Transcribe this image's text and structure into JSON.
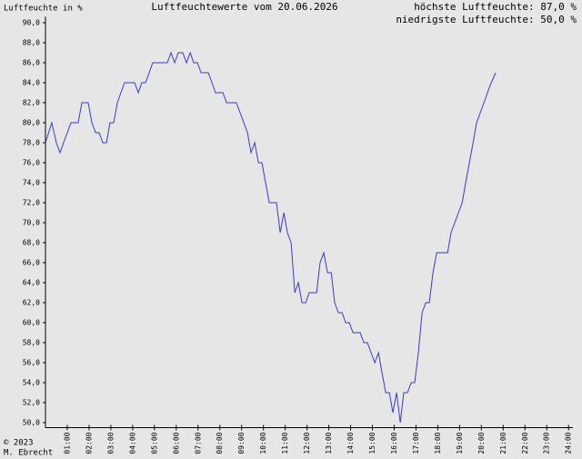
{
  "chart_data": {
    "type": "line",
    "title": "Luftfeuchtewerte vom 20.06.2026",
    "y_label": "Luftfeuchte in %",
    "annotations": [
      "höchste Luftfeuchte: 87,0 %",
      "niedrigste Luftfeuchte: 50,0 %"
    ],
    "footer": [
      "© 2023",
      "M. Ebrecht"
    ],
    "color": "#3a3acc",
    "xlim": [
      0,
      24.2
    ],
    "ylim": [
      49.5,
      90.6
    ],
    "xticks": [
      {
        "value": 1,
        "label": "01:00"
      },
      {
        "value": 2,
        "label": "02:00"
      },
      {
        "value": 3,
        "label": "03:00"
      },
      {
        "value": 4,
        "label": "04:00"
      },
      {
        "value": 5,
        "label": "05:00"
      },
      {
        "value": 6,
        "label": "06:00"
      },
      {
        "value": 7,
        "label": "07:00"
      },
      {
        "value": 8,
        "label": "08:00"
      },
      {
        "value": 9,
        "label": "09:00"
      },
      {
        "value": 10,
        "label": "10:00"
      },
      {
        "value": 11,
        "label": "11:00"
      },
      {
        "value": 12,
        "label": "12:00"
      },
      {
        "value": 13,
        "label": "13:00"
      },
      {
        "value": 14,
        "label": "14:00"
      },
      {
        "value": 15,
        "label": "15:00"
      },
      {
        "value": 16,
        "label": "16:00"
      },
      {
        "value": 17,
        "label": "17:00"
      },
      {
        "value": 18,
        "label": "18:00"
      },
      {
        "value": 19,
        "label": "19:00"
      },
      {
        "value": 20,
        "label": "20:00"
      },
      {
        "value": 21,
        "label": "21:00"
      },
      {
        "value": 22,
        "label": "22:00"
      },
      {
        "value": 23,
        "label": "23:00"
      },
      {
        "value": 24,
        "label": "24:00"
      }
    ],
    "yticks": [
      {
        "value": 50,
        "label": "50,0"
      },
      {
        "value": 52,
        "label": "52,0"
      },
      {
        "value": 54,
        "label": "54,0"
      },
      {
        "value": 56,
        "label": "56,0"
      },
      {
        "value": 58,
        "label": "58,0"
      },
      {
        "value": 60,
        "label": "60,0"
      },
      {
        "value": 62,
        "label": "62,0"
      },
      {
        "value": 64,
        "label": "64,0"
      },
      {
        "value": 66,
        "label": "66,0"
      },
      {
        "value": 68,
        "label": "68,0"
      },
      {
        "value": 70,
        "label": "70,0"
      },
      {
        "value": 72,
        "label": "72,0"
      },
      {
        "value": 74,
        "label": "74,0"
      },
      {
        "value": 76,
        "label": "76,0"
      },
      {
        "value": 78,
        "label": "78,0"
      },
      {
        "value": 80,
        "label": "80,0"
      },
      {
        "value": 82,
        "label": "82,0"
      },
      {
        "value": 84,
        "label": "84,0"
      },
      {
        "value": 86,
        "label": "86,0"
      },
      {
        "value": 88,
        "label": "88,0"
      },
      {
        "value": 90,
        "label": "90,0"
      }
    ],
    "x": [
      0,
      0.29,
      0.5,
      0.67,
      0.83,
      1.0,
      1.17,
      1.5,
      1.67,
      1.96,
      2.13,
      2.3,
      2.46,
      2.63,
      2.8,
      2.96,
      3.13,
      3.3,
      3.46,
      3.63,
      4.09,
      4.26,
      4.42,
      4.59,
      4.76,
      4.92,
      5.59,
      5.76,
      5.93,
      6.09,
      6.3,
      6.47,
      6.64,
      6.8,
      6.97,
      7.14,
      7.47,
      7.64,
      7.8,
      8.14,
      8.31,
      8.76,
      8.93,
      9.1,
      9.27,
      9.43,
      9.6,
      9.77,
      9.93,
      10.1,
      10.27,
      10.6,
      10.77,
      10.94,
      11.1,
      11.27,
      11.44,
      11.6,
      11.77,
      11.94,
      12.1,
      12.44,
      12.6,
      12.77,
      12.94,
      13.11,
      13.27,
      13.44,
      13.61,
      13.77,
      13.94,
      14.11,
      14.44,
      14.61,
      14.77,
      14.94,
      15.11,
      15.28,
      15.44,
      15.61,
      15.78,
      15.94,
      16.11,
      16.28,
      16.44,
      16.61,
      16.78,
      16.94,
      17.11,
      17.28,
      17.45,
      17.61,
      17.78,
      17.95,
      18.45,
      18.61,
      18.78,
      18.95,
      19.12,
      19.28,
      19.45,
      19.62,
      19.78,
      19.95,
      20.12,
      20.28,
      20.45,
      20.66
    ],
    "values": [
      78,
      80,
      78,
      77,
      78,
      79,
      80,
      80,
      82,
      82,
      80,
      79,
      79,
      78,
      78,
      80,
      80,
      82,
      83,
      84,
      84,
      83,
      84,
      84,
      85,
      86,
      86,
      87,
      86,
      87,
      87,
      86,
      87,
      86,
      86,
      85,
      85,
      84,
      83,
      83,
      82,
      82,
      81,
      80,
      79,
      77,
      78,
      76,
      76,
      74,
      72,
      72,
      69,
      71,
      69,
      68,
      63,
      64,
      62,
      62,
      63,
      63,
      66,
      67,
      65,
      65,
      62,
      61,
      61,
      60,
      60,
      59,
      59,
      58,
      58,
      57,
      56,
      57,
      55,
      53,
      53,
      51,
      53,
      50,
      53,
      53,
      54,
      54,
      57,
      61,
      62,
      62,
      65,
      67,
      67,
      69,
      70,
      71,
      72,
      74,
      76,
      78,
      80,
      81,
      82,
      83,
      84,
      85
    ]
  }
}
